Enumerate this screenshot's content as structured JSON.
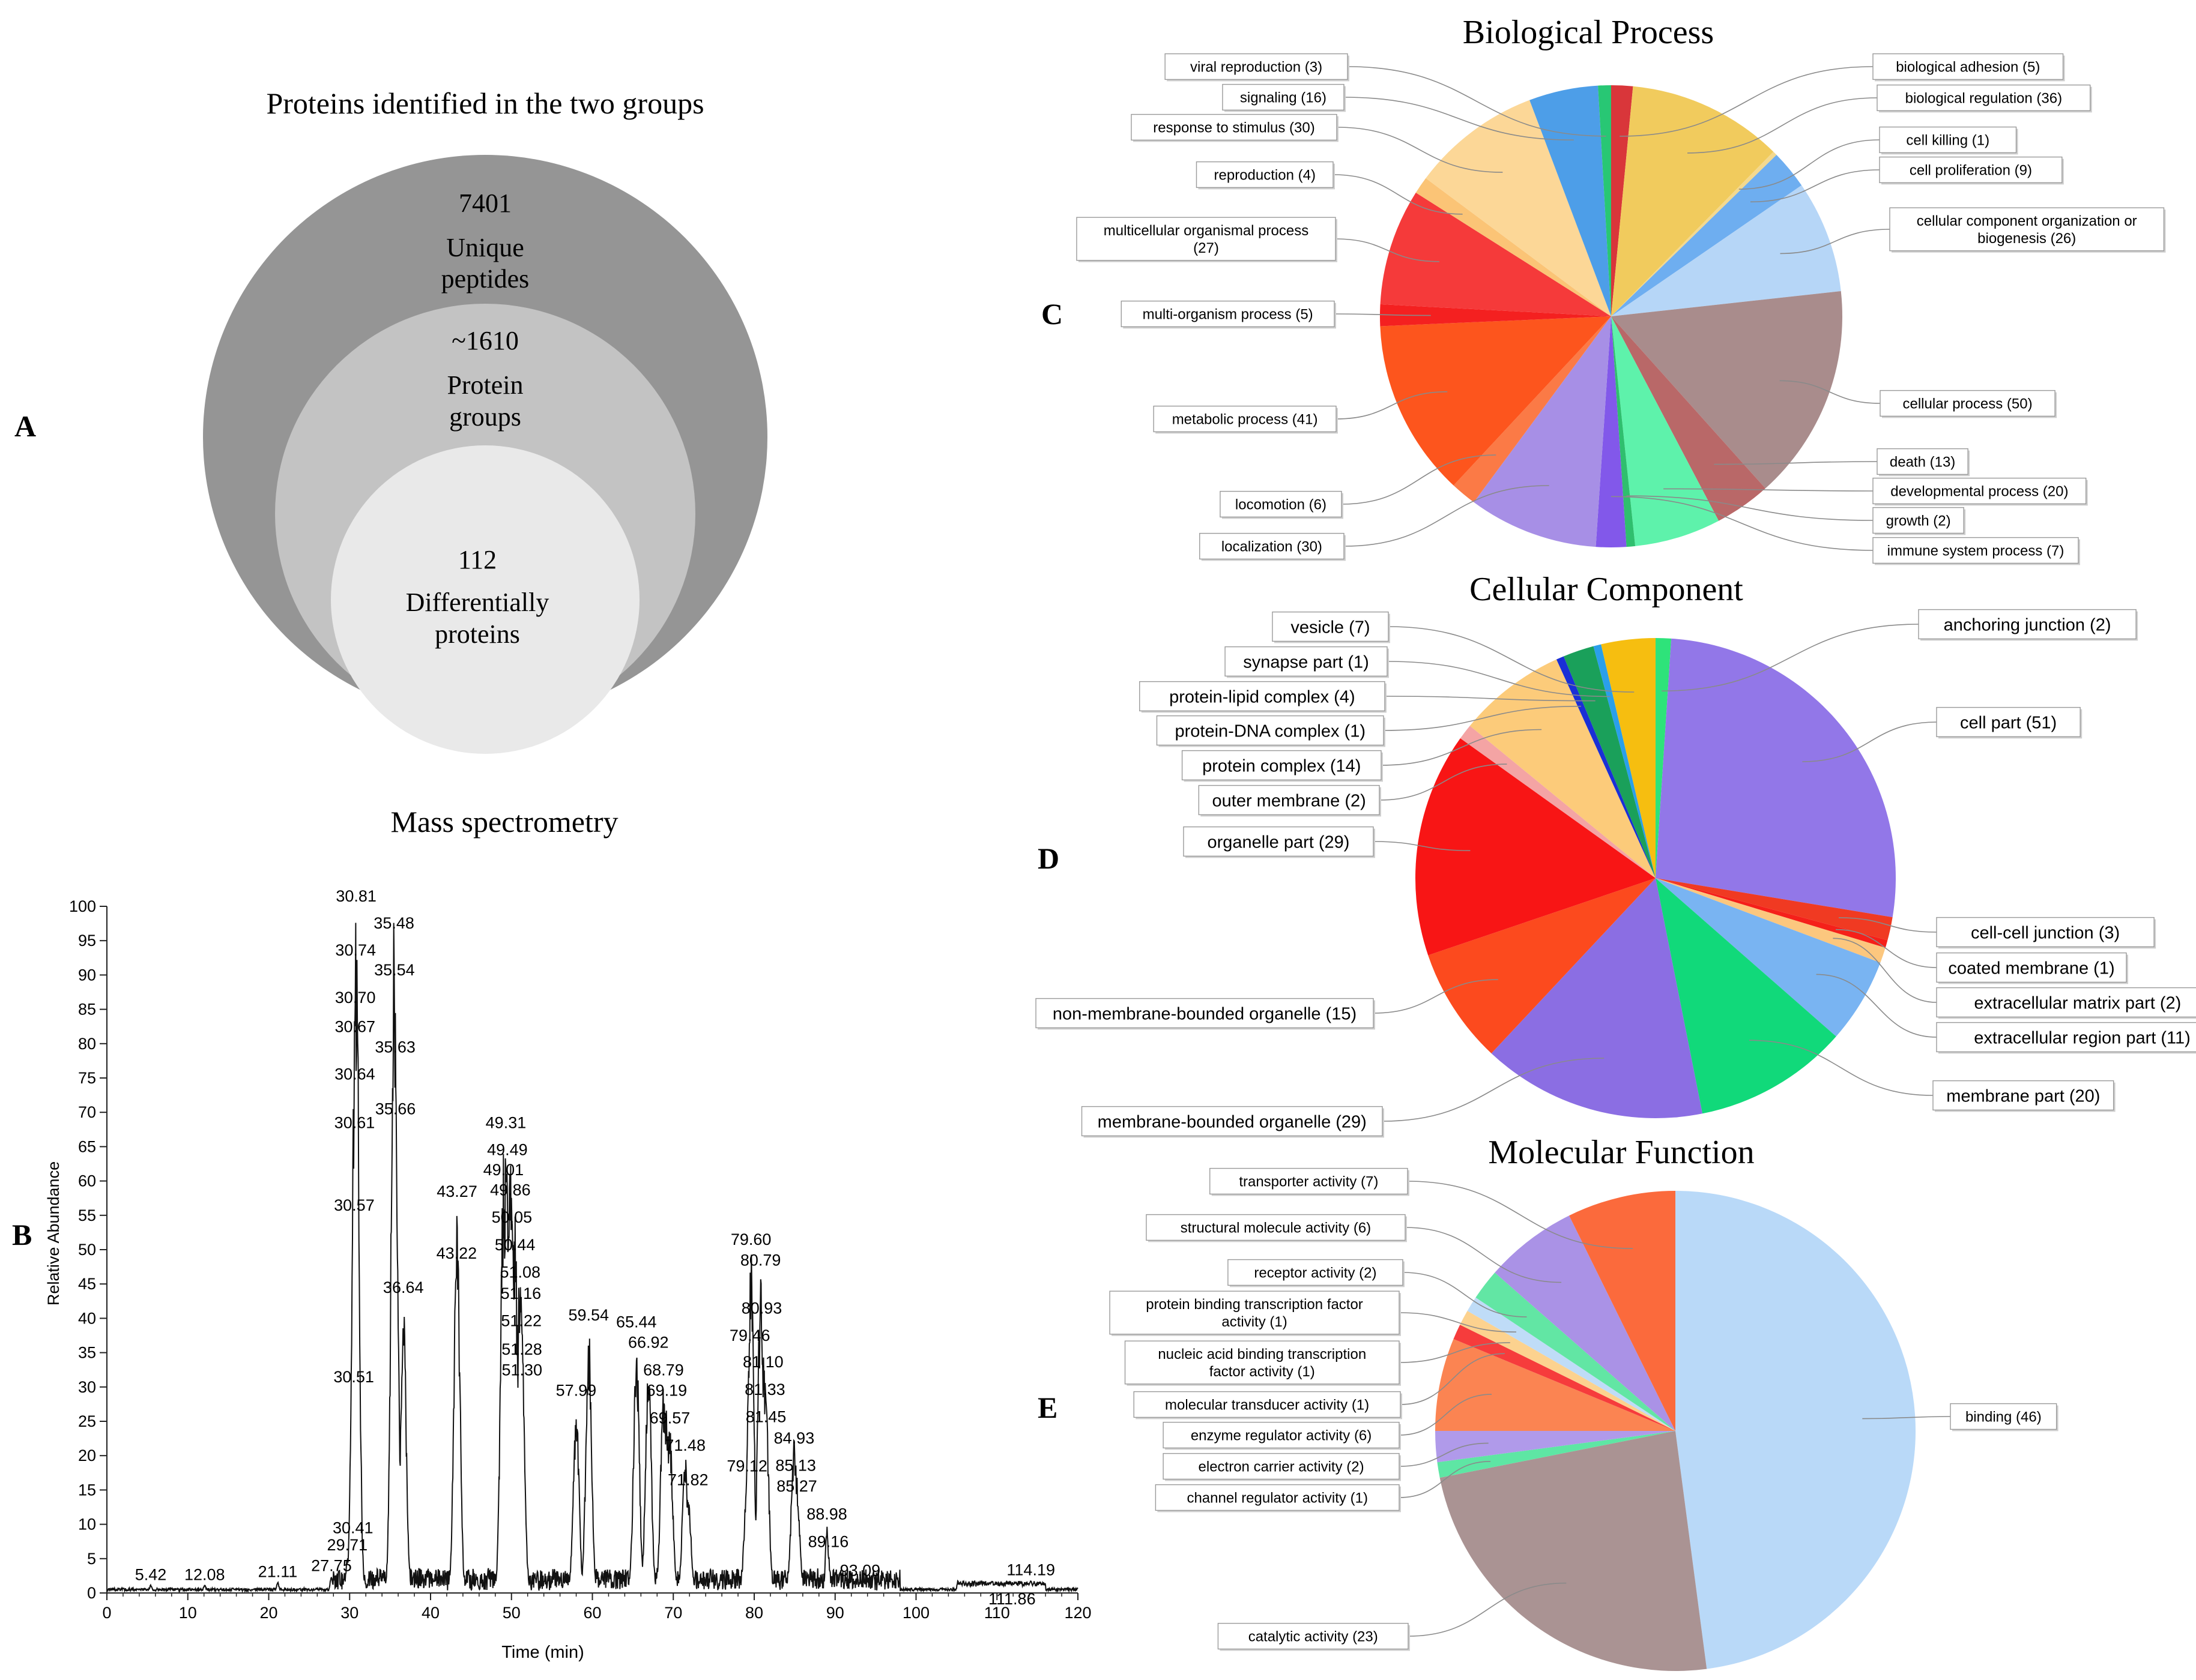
{
  "panels": {
    "A": {
      "letter": "A",
      "title": "Proteins identified in the two groups",
      "outer": {
        "value": "7401",
        "line1": "Unique",
        "line2": "peptides"
      },
      "middle": {
        "value": "~1610",
        "line1": "Protein",
        "line2": "groups"
      },
      "inner": {
        "value": "112",
        "line1": "Differentially",
        "line2": "proteins"
      }
    },
    "B": {
      "letter": "B"
    },
    "C": {
      "letter": "C"
    },
    "D": {
      "letter": "D"
    },
    "E": {
      "letter": "E"
    }
  },
  "chart_data": [
    {
      "type": "line",
      "title": "Mass spectrometry",
      "xlabel": "Time (min)",
      "ylabel": "Relative Abundance",
      "xlim": [
        0,
        120
      ],
      "ylim": [
        0,
        100
      ],
      "xticks": [
        0,
        10,
        20,
        30,
        40,
        50,
        60,
        70,
        80,
        90,
        100,
        110,
        120
      ],
      "yticks": [
        0,
        5,
        10,
        15,
        20,
        25,
        30,
        35,
        40,
        45,
        50,
        55,
        60,
        65,
        70,
        75,
        80,
        85,
        90,
        95,
        100
      ],
      "peaks": [
        {
          "t": 5.42,
          "h": 1.2
        },
        {
          "t": 12.08,
          "h": 1.2
        },
        {
          "t": 21.11,
          "h": 1.6
        },
        {
          "t": 27.75,
          "h": 2.5
        },
        {
          "t": 29.71,
          "h": 5.5
        },
        {
          "t": 30.41,
          "h": 8
        },
        {
          "t": 30.51,
          "h": 30
        },
        {
          "t": 30.57,
          "h": 55
        },
        {
          "t": 30.61,
          "h": 67
        },
        {
          "t": 30.64,
          "h": 76
        },
        {
          "t": 30.67,
          "h": 81
        },
        {
          "t": 30.7,
          "h": 91
        },
        {
          "t": 30.74,
          "h": 96
        },
        {
          "t": 30.81,
          "h": 100
        },
        {
          "t": 35.48,
          "h": 98
        },
        {
          "t": 35.54,
          "h": 95
        },
        {
          "t": 35.63,
          "h": 78
        },
        {
          "t": 35.66,
          "h": 69
        },
        {
          "t": 36.64,
          "h": 43
        },
        {
          "t": 43.22,
          "h": 48
        },
        {
          "t": 43.27,
          "h": 57
        },
        {
          "t": 49.01,
          "h": 64
        },
        {
          "t": 49.31,
          "h": 67
        },
        {
          "t": 49.49,
          "h": 65
        },
        {
          "t": 49.86,
          "h": 63
        },
        {
          "t": 50.05,
          "h": 59
        },
        {
          "t": 50.44,
          "h": 55
        },
        {
          "t": 51.08,
          "h": 51
        },
        {
          "t": 51.16,
          "h": 46
        },
        {
          "t": 51.22,
          "h": 42
        },
        {
          "t": 51.28,
          "h": 34
        },
        {
          "t": 51.3,
          "h": 31
        },
        {
          "t": 57.99,
          "h": 28
        },
        {
          "t": 59.54,
          "h": 39
        },
        {
          "t": 65.44,
          "h": 38
        },
        {
          "t": 66.92,
          "h": 35
        },
        {
          "t": 68.79,
          "h": 31
        },
        {
          "t": 69.19,
          "h": 28
        },
        {
          "t": 69.57,
          "h": 24
        },
        {
          "t": 71.48,
          "h": 20
        },
        {
          "t": 71.82,
          "h": 15
        },
        {
          "t": 79.12,
          "h": 17
        },
        {
          "t": 79.46,
          "h": 36
        },
        {
          "t": 79.6,
          "h": 50
        },
        {
          "t": 80.79,
          "h": 47
        },
        {
          "t": 80.93,
          "h": 40
        },
        {
          "t": 81.1,
          "h": 36
        },
        {
          "t": 81.33,
          "h": 32
        },
        {
          "t": 81.45,
          "h": 28
        },
        {
          "t": 84.93,
          "h": 23
        },
        {
          "t": 85.13,
          "h": 19
        },
        {
          "t": 85.27,
          "h": 16
        },
        {
          "t": 88.98,
          "h": 10
        },
        {
          "t": 89.16,
          "h": 6
        },
        {
          "t": 93.09,
          "h": 1.8
        },
        {
          "t": 111.86,
          "h": 1.5
        },
        {
          "t": 114.19,
          "h": 1.9
        }
      ],
      "peak_labels": [
        "5.42",
        "12.08",
        "21.11",
        "27.75",
        "29.71",
        "30.41",
        "30.51",
        "30.57",
        "30.61",
        "30.64",
        "30.67",
        "30.70",
        "30.74",
        "30.81",
        "35.48",
        "35.54",
        "35.63",
        "35.66",
        "36.64",
        "43.22",
        "43.27",
        "49.01",
        "49.31",
        "49.49",
        "49.86",
        "50.05",
        "50.44",
        "51.08",
        "51.16",
        "51.22",
        "51.28",
        "51.30",
        "57.99",
        "59.54",
        "65.44",
        "66.92",
        "68.79",
        "69.19",
        "69.57",
        "71.48",
        "71.82",
        "79.12",
        "79.46",
        "79.60",
        "80.79",
        "80.93",
        "81.10",
        "81.33",
        "81.45",
        "84.93",
        "85.13",
        "85.27",
        "88.98",
        "89.16",
        "93.09",
        "111.86",
        "114.19"
      ]
    },
    {
      "type": "pie",
      "title": "Biological  Process",
      "slices": [
        {
          "label": "biological adhesion (5)",
          "value": 5,
          "color": "#d9363a"
        },
        {
          "label": "biological regulation (36)",
          "value": 36,
          "color": "#f1cb5d"
        },
        {
          "label": "cell killing (1)",
          "value": 1,
          "color": "#f4d98e"
        },
        {
          "label": "cell proliferation (9)",
          "value": 9,
          "color": "#6eaef0"
        },
        {
          "label": "cellular component organization or biogenesis (26)",
          "value": 26,
          "color": "#b6d6f7"
        },
        {
          "label": "cellular process (50)",
          "value": 50,
          "color": "#a98c8c"
        },
        {
          "label": "death (13)",
          "value": 13,
          "color": "#b96868"
        },
        {
          "label": "developmental process (20)",
          "value": 20,
          "color": "#5ef2ab"
        },
        {
          "label": "growth (2)",
          "value": 2,
          "color": "#2fbf6e"
        },
        {
          "label": "immune system process (7)",
          "value": 7,
          "color": "#8258ea"
        },
        {
          "label": "localization (30)",
          "value": 30,
          "color": "#a78fe6"
        },
        {
          "label": "locomotion (6)",
          "value": 6,
          "color": "#fb7a46"
        },
        {
          "label": "metabolic process (41)",
          "value": 41,
          "color": "#fd551d"
        },
        {
          "label": "multi-organism process (5)",
          "value": 5,
          "color": "#f42020"
        },
        {
          "label": "multicellular organismal process (27)",
          "value": 27,
          "color": "#f53a3a"
        },
        {
          "label": "reproduction (4)",
          "value": 4,
          "color": "#fbc476"
        },
        {
          "label": "response to stimulus (30)",
          "value": 30,
          "color": "#fcd797"
        },
        {
          "label": "signaling (16)",
          "value": 16,
          "color": "#4d9ee8"
        },
        {
          "label": "viral reproduction (3)",
          "value": 3,
          "color": "#28c774"
        }
      ]
    },
    {
      "type": "pie",
      "title": "Cellular Component",
      "slices": [
        {
          "label": "anchoring junction (2)",
          "value": 2,
          "color": "#2ee37a"
        },
        {
          "label": "cell part (51)",
          "value": 51,
          "color": "#9277e8"
        },
        {
          "label": "cell-cell junction (3)",
          "value": 3,
          "color": "#f03a22"
        },
        {
          "label": "coated membrane (1)",
          "value": 1,
          "color": "#f5201a"
        },
        {
          "label": "extracellular matrix part (2)",
          "value": 2,
          "color": "#fcc77e"
        },
        {
          "label": "extracellular region part (11)",
          "value": 11,
          "color": "#79b4f2"
        },
        {
          "label": "membrane part (20)",
          "value": 20,
          "color": "#11d97a"
        },
        {
          "label": "membrane-bounded organelle (29)",
          "value": 29,
          "color": "#8b6ee3"
        },
        {
          "label": "non-membrane-bounded organelle (15)",
          "value": 15,
          "color": "#fc4a1e"
        },
        {
          "label": "organelle part (29)",
          "value": 29,
          "color": "#f81515"
        },
        {
          "label": "outer membrane (2)",
          "value": 2,
          "color": "#f4a4a4"
        },
        {
          "label": "protein complex (14)",
          "value": 14,
          "color": "#fccb7a"
        },
        {
          "label": "protein-DNA complex (1)",
          "value": 1,
          "color": "#1a2fd6"
        },
        {
          "label": "protein-lipid complex (4)",
          "value": 4,
          "color": "#1aa05a"
        },
        {
          "label": "synapse part (1)",
          "value": 1,
          "color": "#2a9fea"
        },
        {
          "label": "vesicle (7)",
          "value": 7,
          "color": "#f6be10"
        }
      ]
    },
    {
      "type": "pie",
      "title": "Molecular Function",
      "slices": [
        {
          "label": "binding (46)",
          "value": 46,
          "color": "#b9d9f8"
        },
        {
          "label": "catalytic activity (23)",
          "value": 23,
          "color": "#aa9393"
        },
        {
          "label": "channel regulator activity (1)",
          "value": 1,
          "color": "#5ee6a4"
        },
        {
          "label": "electron carrier activity (2)",
          "value": 2,
          "color": "#b09aea"
        },
        {
          "label": "enzyme regulator activity (6)",
          "value": 6,
          "color": "#fb8452"
        },
        {
          "label": "molecular transducer activity (1)",
          "value": 1,
          "color": "#f63c3c"
        },
        {
          "label": "nucleic acid binding transcription factor activity (1)",
          "value": 1,
          "color": "#fcd28f"
        },
        {
          "label": "protein binding transcription factor activity (1)",
          "value": 1,
          "color": "#bfdcf7"
        },
        {
          "label": "receptor activity (2)",
          "value": 2,
          "color": "#62e6a4"
        },
        {
          "label": "structural molecule activity (6)",
          "value": 6,
          "color": "#aa92e6"
        },
        {
          "label": "transporter activity (7)",
          "value": 7,
          "color": "#fb6a3c"
        }
      ]
    }
  ]
}
